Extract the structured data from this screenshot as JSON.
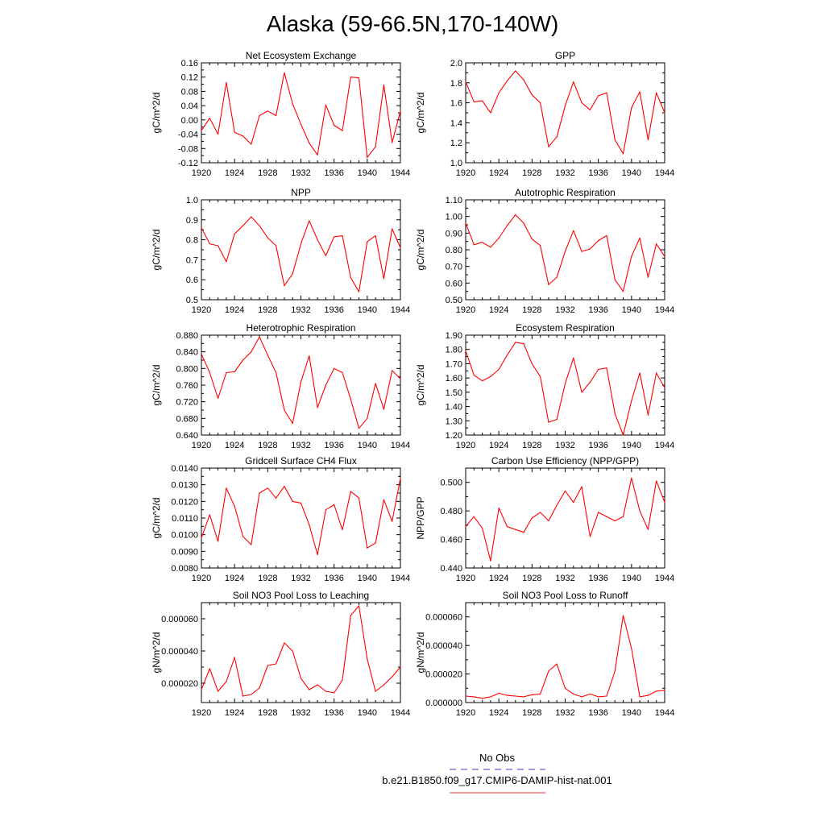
{
  "title": "Alaska (59-66.5N,170-140W)",
  "legend": [
    {
      "label": "No Obs",
      "color": "#3a3acc",
      "style": "dashed"
    },
    {
      "label": "b.e21.B1850.f09_g17.CMIP6-DAMIP-hist-nat.001",
      "color": "#e03a3a",
      "style": "solid"
    }
  ],
  "colors": {
    "series": "#ff0000",
    "axis": "#000000"
  },
  "chart_data": [
    {
      "type": "line",
      "title": "Net Ecosystem Exchange",
      "ylabel": "gC/m^2/d",
      "xlim": [
        1920,
        1944
      ],
      "ylim": [
        -0.12,
        0.16
      ],
      "xticks": [
        1920,
        1924,
        1928,
        1932,
        1936,
        1940,
        1944
      ],
      "yticks": [
        "-0.12",
        "-0.08",
        "-0.04",
        "0.00",
        "0.04",
        "0.08",
        "0.12",
        "0.16"
      ],
      "x": [
        1920,
        1921,
        1922,
        1923,
        1924,
        1925,
        1926,
        1927,
        1928,
        1929,
        1930,
        1931,
        1932,
        1933,
        1934,
        1935,
        1936,
        1937,
        1938,
        1939,
        1940,
        1941,
        1942,
        1943,
        1944
      ],
      "y": [
        -0.03,
        0.005,
        -0.04,
        0.105,
        -0.035,
        -0.045,
        -0.068,
        0.012,
        0.025,
        0.012,
        0.132,
        0.045,
        -0.012,
        -0.065,
        -0.098,
        0.042,
        -0.015,
        -0.03,
        0.12,
        0.118,
        -0.105,
        -0.075,
        0.098,
        -0.063,
        0.025
      ]
    },
    {
      "type": "line",
      "title": "GPP",
      "ylabel": "gC/m^2/d",
      "xlim": [
        1920,
        1944
      ],
      "ylim": [
        1.0,
        2.0
      ],
      "xticks": [
        1920,
        1924,
        1928,
        1932,
        1936,
        1940,
        1944
      ],
      "yticks": [
        "1.0",
        "1.2",
        "1.4",
        "1.6",
        "1.8",
        "2.0"
      ],
      "x": [
        1920,
        1921,
        1922,
        1923,
        1924,
        1925,
        1926,
        1927,
        1928,
        1929,
        1930,
        1931,
        1932,
        1933,
        1934,
        1935,
        1936,
        1937,
        1938,
        1939,
        1940,
        1941,
        1942,
        1943,
        1944
      ],
      "y": [
        1.81,
        1.61,
        1.62,
        1.5,
        1.7,
        1.82,
        1.92,
        1.83,
        1.68,
        1.6,
        1.16,
        1.26,
        1.57,
        1.81,
        1.6,
        1.53,
        1.67,
        1.7,
        1.23,
        1.09,
        1.55,
        1.71,
        1.23,
        1.7,
        1.5
      ]
    },
    {
      "type": "line",
      "title": "NPP",
      "ylabel": "gC/m^2/d",
      "xlim": [
        1920,
        1944
      ],
      "ylim": [
        0.5,
        1.0
      ],
      "xticks": [
        1920,
        1924,
        1928,
        1932,
        1936,
        1940,
        1944
      ],
      "yticks": [
        "0.5",
        "0.6",
        "0.7",
        "0.8",
        "0.9",
        "1.0"
      ],
      "x": [
        1920,
        1921,
        1922,
        1923,
        1924,
        1925,
        1926,
        1927,
        1928,
        1929,
        1930,
        1931,
        1932,
        1933,
        1934,
        1935,
        1936,
        1937,
        1938,
        1939,
        1940,
        1941,
        1942,
        1943,
        1944
      ],
      "y": [
        0.86,
        0.78,
        0.77,
        0.69,
        0.83,
        0.87,
        0.915,
        0.87,
        0.81,
        0.77,
        0.57,
        0.63,
        0.78,
        0.895,
        0.8,
        0.72,
        0.815,
        0.82,
        0.61,
        0.54,
        0.79,
        0.82,
        0.605,
        0.855,
        0.76
      ]
    },
    {
      "type": "line",
      "title": "Autotrophic Respiration",
      "ylabel": "gC/m^2/d",
      "xlim": [
        1920,
        1944
      ],
      "ylim": [
        0.5,
        1.1
      ],
      "xticks": [
        1920,
        1924,
        1928,
        1932,
        1936,
        1940,
        1944
      ],
      "yticks": [
        "0.50",
        "0.60",
        "0.70",
        "0.80",
        "0.90",
        "1.00",
        "1.10"
      ],
      "x": [
        1920,
        1921,
        1922,
        1923,
        1924,
        1925,
        1926,
        1927,
        1928,
        1929,
        1930,
        1931,
        1932,
        1933,
        1934,
        1935,
        1936,
        1937,
        1938,
        1939,
        1940,
        1941,
        1942,
        1943,
        1944
      ],
      "y": [
        0.96,
        0.83,
        0.845,
        0.815,
        0.87,
        0.945,
        1.01,
        0.96,
        0.865,
        0.825,
        0.59,
        0.635,
        0.79,
        0.915,
        0.79,
        0.805,
        0.855,
        0.885,
        0.62,
        0.55,
        0.76,
        0.87,
        0.635,
        0.835,
        0.76
      ]
    },
    {
      "type": "line",
      "title": "Heterotrophic Respiration",
      "ylabel": "gC/m^2/d",
      "xlim": [
        1920,
        1944
      ],
      "ylim": [
        0.64,
        0.88
      ],
      "xticks": [
        1920,
        1924,
        1928,
        1932,
        1936,
        1940,
        1944
      ],
      "yticks": [
        "0.640",
        "0.680",
        "0.720",
        "0.760",
        "0.800",
        "0.840",
        "0.880"
      ],
      "x": [
        1920,
        1921,
        1922,
        1923,
        1924,
        1925,
        1926,
        1927,
        1928,
        1929,
        1930,
        1931,
        1932,
        1933,
        1934,
        1935,
        1936,
        1937,
        1938,
        1939,
        1940,
        1941,
        1942,
        1943,
        1944
      ],
      "y": [
        0.835,
        0.79,
        0.728,
        0.79,
        0.792,
        0.82,
        0.84,
        0.876,
        0.832,
        0.79,
        0.7,
        0.668,
        0.768,
        0.83,
        0.706,
        0.76,
        0.8,
        0.79,
        0.726,
        0.656,
        0.68,
        0.764,
        0.702,
        0.795,
        0.775
      ]
    },
    {
      "type": "line",
      "title": "Ecosystem Respiration",
      "ylabel": "gC/m^2/d",
      "xlim": [
        1920,
        1944
      ],
      "ylim": [
        1.2,
        1.9
      ],
      "xticks": [
        1920,
        1924,
        1928,
        1932,
        1936,
        1940,
        1944
      ],
      "yticks": [
        "1.20",
        "1.30",
        "1.40",
        "1.50",
        "1.60",
        "1.70",
        "1.80",
        "1.90"
      ],
      "x": [
        1920,
        1921,
        1922,
        1923,
        1924,
        1925,
        1926,
        1927,
        1928,
        1929,
        1930,
        1931,
        1932,
        1933,
        1934,
        1935,
        1936,
        1937,
        1938,
        1939,
        1940,
        1941,
        1942,
        1943,
        1944
      ],
      "y": [
        1.79,
        1.62,
        1.58,
        1.61,
        1.66,
        1.76,
        1.85,
        1.84,
        1.7,
        1.61,
        1.29,
        1.31,
        1.56,
        1.74,
        1.5,
        1.57,
        1.66,
        1.67,
        1.35,
        1.2,
        1.44,
        1.635,
        1.34,
        1.635,
        1.53
      ]
    },
    {
      "type": "line",
      "title": "Gridcell Surface CH4 Flux",
      "ylabel": "gC/m^2/d",
      "xlim": [
        1920,
        1944
      ],
      "ylim": [
        0.008,
        0.014
      ],
      "xticks": [
        1920,
        1924,
        1928,
        1932,
        1936,
        1940,
        1944
      ],
      "yticks": [
        "0.0080",
        "0.0090",
        "0.0100",
        "0.0110",
        "0.0120",
        "0.0130",
        "0.0140"
      ],
      "x": [
        1920,
        1921,
        1922,
        1923,
        1924,
        1925,
        1926,
        1927,
        1928,
        1929,
        1930,
        1931,
        1932,
        1933,
        1934,
        1935,
        1936,
        1937,
        1938,
        1939,
        1940,
        1941,
        1942,
        1943,
        1944
      ],
      "y": [
        0.0098,
        0.0112,
        0.0096,
        0.0128,
        0.0117,
        0.0099,
        0.0094,
        0.0125,
        0.0128,
        0.0122,
        0.0129,
        0.012,
        0.0119,
        0.0106,
        0.0088,
        0.0115,
        0.0118,
        0.0103,
        0.0126,
        0.0122,
        0.0092,
        0.0095,
        0.0121,
        0.0108,
        0.0134
      ]
    },
    {
      "type": "line",
      "title": "Carbon Use Efficiency (NPP/GPP)",
      "ylabel": "NPP/GPP",
      "xlim": [
        1920,
        1944
      ],
      "ylim": [
        0.44,
        0.51
      ],
      "xticks": [
        1920,
        1924,
        1928,
        1932,
        1936,
        1940,
        1944
      ],
      "yticks": [
        "0.440",
        "0.460",
        "0.480",
        "0.500"
      ],
      "x": [
        1920,
        1921,
        1922,
        1923,
        1924,
        1925,
        1926,
        1927,
        1928,
        1929,
        1930,
        1931,
        1932,
        1933,
        1934,
        1935,
        1936,
        1937,
        1938,
        1939,
        1940,
        1941,
        1942,
        1943,
        1944
      ],
      "y": [
        0.469,
        0.476,
        0.468,
        0.445,
        0.482,
        0.469,
        0.467,
        0.465,
        0.475,
        0.479,
        0.473,
        0.484,
        0.494,
        0.486,
        0.497,
        0.462,
        0.479,
        0.476,
        0.473,
        0.476,
        0.503,
        0.48,
        0.467,
        0.501,
        0.486
      ]
    },
    {
      "type": "line",
      "title": "Soil NO3 Pool Loss to Leaching",
      "ylabel": "gN/m^2/d",
      "xlim": [
        1920,
        1944
      ],
      "ylim": [
        8e-06,
        7e-05
      ],
      "xticks": [
        1920,
        1924,
        1928,
        1932,
        1936,
        1940,
        1944
      ],
      "yticks": [
        "0.000020",
        "0.000040",
        "0.000060"
      ],
      "x": [
        1920,
        1921,
        1922,
        1923,
        1924,
        1925,
        1926,
        1927,
        1928,
        1929,
        1930,
        1931,
        1932,
        1933,
        1934,
        1935,
        1936,
        1937,
        1938,
        1939,
        1940,
        1941,
        1942,
        1943,
        1944
      ],
      "y": [
        1.6e-05,
        2.9e-05,
        1.5e-05,
        2.1e-05,
        3.6e-05,
        1.2e-05,
        1.3e-05,
        1.7e-05,
        3.1e-05,
        3.2e-05,
        4.5e-05,
        4e-05,
        2.3e-05,
        1.6e-05,
        1.9e-05,
        1.5e-05,
        1.4e-05,
        2.2e-05,
        6.2e-05,
        6.8e-05,
        3.5e-05,
        1.5e-05,
        1.9e-05,
        2.4e-05,
        3e-05
      ]
    },
    {
      "type": "line",
      "title": "Soil NO3 Pool Loss to Runoff",
      "ylabel": "gN/m^2/d",
      "xlim": [
        1920,
        1944
      ],
      "ylim": [
        0.0,
        7e-05
      ],
      "xticks": [
        1920,
        1924,
        1928,
        1932,
        1936,
        1940,
        1944
      ],
      "yticks": [
        "0.000000",
        "0.000020",
        "0.000040",
        "0.000060"
      ],
      "x": [
        1920,
        1921,
        1922,
        1923,
        1924,
        1925,
        1926,
        1927,
        1928,
        1929,
        1930,
        1931,
        1932,
        1933,
        1934,
        1935,
        1936,
        1937,
        1938,
        1939,
        1940,
        1941,
        1942,
        1943,
        1944
      ],
      "y": [
        4.5e-06,
        4e-06,
        3e-06,
        4e-06,
        6.5e-06,
        5e-06,
        4.5e-06,
        4e-06,
        5.5e-06,
        6e-06,
        2.2e-05,
        2.7e-05,
        1e-05,
        6e-06,
        4e-06,
        6e-06,
        4e-06,
        4.5e-06,
        2.2e-05,
        6.1e-05,
        3.8e-05,
        4e-06,
        5e-06,
        8e-06,
        8.5e-06
      ]
    }
  ]
}
